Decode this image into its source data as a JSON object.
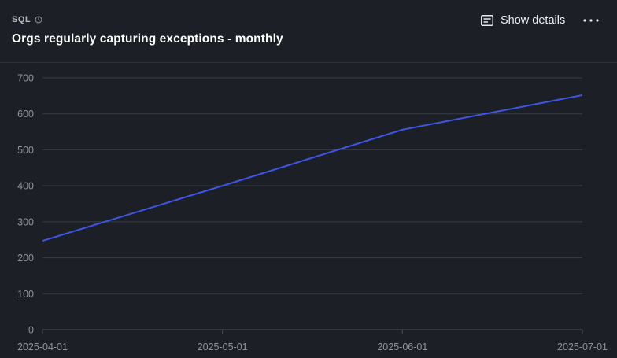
{
  "header": {
    "badge": "SQL",
    "title": "Orgs regularly capturing exceptions - monthly",
    "details_label": "Show details"
  },
  "icons": {
    "badge_icon": "clock-icon",
    "details_icon": "details-card-icon",
    "more_icon": "more-horizontal-icon"
  },
  "colors": {
    "background": "#1d1f27",
    "line": "#3f55e6",
    "grid": "#3a3d46",
    "tick_label": "#8f929a"
  },
  "chart_data": {
    "type": "line",
    "title": "",
    "xlabel": "",
    "ylabel": "",
    "x": [
      "2025-04-01",
      "2025-05-01",
      "2025-06-01",
      "2025-07-01"
    ],
    "series": [
      {
        "values": [
          247,
          400,
          556,
          652
        ]
      }
    ],
    "ylim": [
      0,
      700
    ],
    "yticks": [
      0,
      100,
      200,
      300,
      400,
      500,
      600,
      700
    ],
    "grid": true,
    "legend": "none"
  }
}
